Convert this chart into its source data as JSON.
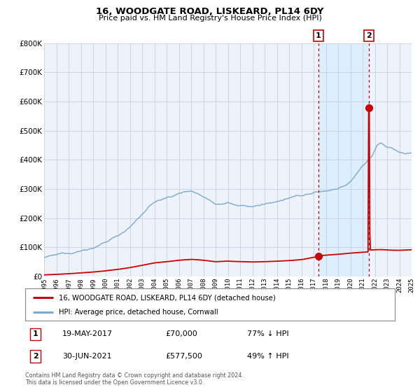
{
  "title": "16, WOODGATE ROAD, LISKEARD, PL14 6DY",
  "subtitle": "Price paid vs. HM Land Registry's House Price Index (HPI)",
  "hpi_label": "HPI: Average price, detached house, Cornwall",
  "house_label": "16, WOODGATE ROAD, LISKEARD, PL14 6DY (detached house)",
  "transaction1": {
    "date": "19-MAY-2017",
    "price": 70000,
    "pct": "77%",
    "dir": "↓",
    "label": "1"
  },
  "transaction2": {
    "date": "30-JUN-2021",
    "price": 577500,
    "pct": "49%",
    "dir": "↑",
    "label": "2"
  },
  "year_start": 1995,
  "year_end": 2025,
  "ylim": [
    0,
    800000
  ],
  "yticks": [
    0,
    100000,
    200000,
    300000,
    400000,
    500000,
    600000,
    700000,
    800000
  ],
  "hpi_color": "#7aaad0",
  "house_color": "#cc0000",
  "vline_color": "#cc0000",
  "shade_color": "#ddeeff",
  "bg_color": "#eef2fa",
  "grid_color": "#c8cfe0",
  "footnote": "Contains HM Land Registry data © Crown copyright and database right 2024.\nThis data is licensed under the Open Government Licence v3.0.",
  "trans1_year": 2017.38,
  "trans2_year": 2021.5
}
